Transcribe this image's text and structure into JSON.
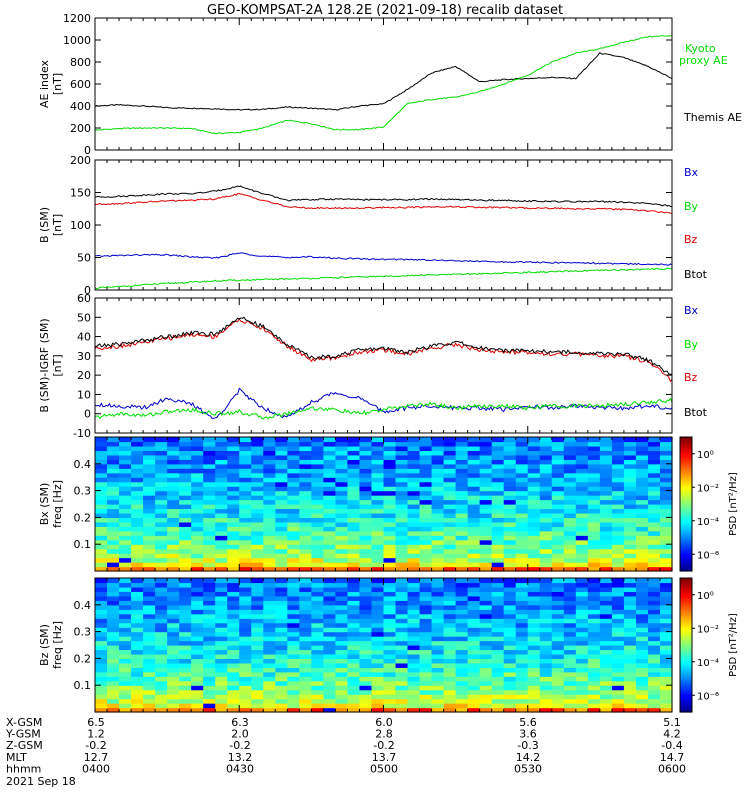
{
  "title": "GEO-KOMPSAT-2A 128.2E (2021-09-18) recalib dataset",
  "chart_data": [
    {
      "type": "line",
      "ylabel": "AE index",
      "yunit": "[nT]",
      "ylim": [
        0,
        1200
      ],
      "yticks": [
        0,
        200,
        400,
        600,
        800,
        1000,
        1200
      ],
      "x_minutes": [
        0,
        5,
        10,
        15,
        20,
        25,
        30,
        35,
        40,
        45,
        50,
        55,
        60,
        65,
        70,
        75,
        80,
        85,
        90,
        95,
        100,
        105,
        110,
        115,
        120
      ],
      "series": [
        {
          "name": "Themis AE",
          "color": "#000000",
          "values": [
            400,
            410,
            400,
            385,
            380,
            375,
            365,
            370,
            390,
            380,
            365,
            400,
            420,
            550,
            700,
            760,
            620,
            640,
            650,
            660,
            650,
            880,
            840,
            760,
            650
          ]
        },
        {
          "name": "Kyoto proxy AE",
          "color": "#00dd00",
          "values": [
            180,
            195,
            200,
            200,
            195,
            150,
            160,
            200,
            270,
            240,
            185,
            185,
            210,
            420,
            460,
            480,
            530,
            600,
            680,
            800,
            880,
            920,
            980,
            1030,
            1040
          ]
        }
      ]
    },
    {
      "type": "line",
      "ylabel": "B (SM)",
      "yunit": "[nT]",
      "ylim": [
        0,
        200
      ],
      "yticks": [
        0,
        50,
        100,
        150,
        200
      ],
      "x_minutes": [
        0,
        5,
        10,
        15,
        20,
        25,
        30,
        35,
        40,
        45,
        50,
        55,
        60,
        65,
        70,
        75,
        80,
        85,
        90,
        95,
        100,
        105,
        110,
        115,
        120
      ],
      "series": [
        {
          "name": "Bx",
          "color": "#0000cc",
          "values": [
            52,
            53,
            54,
            54,
            51,
            49,
            57,
            52,
            50,
            51,
            49,
            48,
            47,
            47,
            46,
            45,
            44,
            43,
            43,
            42,
            42,
            41,
            40,
            40,
            39
          ]
        },
        {
          "name": "By",
          "color": "#00dd00",
          "values": [
            3,
            5,
            8,
            10,
            12,
            14,
            15,
            16,
            17,
            18,
            19,
            20,
            21,
            22,
            23,
            24,
            25,
            26,
            27,
            28,
            29,
            30,
            31,
            32,
            33
          ]
        },
        {
          "name": "Bz",
          "color": "#dd0000",
          "values": [
            132,
            133,
            135,
            137,
            138,
            140,
            148,
            138,
            128,
            126,
            126,
            126,
            127,
            127,
            128,
            128,
            127,
            127,
            126,
            126,
            125,
            125,
            124,
            122,
            118
          ]
        },
        {
          "name": "Btot",
          "color": "#000000",
          "values": [
            143,
            144,
            146,
            148,
            148,
            152,
            160,
            148,
            138,
            139,
            140,
            139,
            139,
            139,
            140,
            139,
            138,
            138,
            137,
            136,
            136,
            136,
            135,
            133,
            129
          ]
        }
      ]
    },
    {
      "type": "line",
      "ylabel": "B (SM)-IGRF (SM)",
      "yunit": "[nT]",
      "ylim": [
        -10,
        60
      ],
      "yticks": [
        -10,
        0,
        10,
        20,
        30,
        40,
        50,
        60
      ],
      "x_minutes": [
        0,
        5,
        10,
        15,
        20,
        25,
        30,
        35,
        40,
        45,
        50,
        55,
        60,
        65,
        70,
        75,
        80,
        85,
        90,
        95,
        100,
        105,
        110,
        115,
        120
      ],
      "series": [
        {
          "name": "Bx",
          "color": "#0000cc",
          "values": [
            5,
            4,
            3,
            8,
            5,
            -3,
            12,
            3,
            -2,
            6,
            11,
            8,
            1,
            3,
            4,
            3,
            3,
            2,
            4,
            3,
            4,
            3,
            3,
            4,
            3
          ]
        },
        {
          "name": "By",
          "color": "#00dd00",
          "values": [
            -2,
            0,
            -1,
            1,
            2,
            0,
            1,
            -2,
            0,
            3,
            2,
            0,
            2,
            4,
            5,
            3,
            4,
            4,
            3,
            4,
            4,
            4,
            5,
            6,
            7
          ]
        },
        {
          "name": "Bz",
          "color": "#dd0000",
          "values": [
            34,
            35,
            37,
            39,
            41,
            40,
            49,
            44,
            35,
            28,
            29,
            32,
            33,
            31,
            34,
            36,
            33,
            32,
            32,
            31,
            31,
            30,
            30,
            27,
            17
          ]
        },
        {
          "name": "Btot",
          "color": "#000000",
          "values": [
            35,
            36,
            38,
            40,
            42,
            41,
            50,
            45,
            36,
            29,
            30,
            33,
            34,
            32,
            35,
            37,
            34,
            33,
            33,
            32,
            32,
            31,
            31,
            28,
            20
          ]
        }
      ]
    },
    {
      "type": "heatmap",
      "ylabel": "Bx (SM)",
      "yunit": "freq [Hz]",
      "ylim": [
        0,
        0.5
      ],
      "yticks": [
        0.1,
        0.2,
        0.3,
        0.4
      ],
      "colorbar": {
        "label": "PSD [nT²/Hz]",
        "ticks": [
          "10⁰",
          "10⁻²",
          "10⁻⁴",
          "10⁻⁶"
        ],
        "exponents": [
          0,
          -2,
          -4,
          -6
        ],
        "range_exp": [
          -7,
          1
        ]
      },
      "seed": 7
    },
    {
      "type": "heatmap",
      "ylabel": "Bz (SM)",
      "yunit": "freq [Hz]",
      "ylim": [
        0,
        0.5
      ],
      "yticks": [
        0.1,
        0.2,
        0.3,
        0.4
      ],
      "colorbar": {
        "label": "PSD [nT²/Hz]",
        "ticks": [
          "10⁰",
          "10⁻²",
          "10⁻⁴",
          "10⁻⁶"
        ],
        "exponents": [
          0,
          -2,
          -4,
          -6
        ],
        "range_exp": [
          -7,
          1
        ]
      },
      "seed": 13
    }
  ],
  "legends": [
    [
      "Kyoto",
      "proxy AE",
      "Themis AE"
    ],
    [
      "Bx",
      "By",
      "Bz",
      "Btot"
    ],
    [
      "Bx",
      "By",
      "Bz",
      "Btot"
    ]
  ],
  "ephemeris": {
    "rows": [
      {
        "label": "X-GSM",
        "values": [
          "6.5",
          "6.3",
          "6.0",
          "5.6",
          "5.1"
        ]
      },
      {
        "label": "Y-GSM",
        "values": [
          "1.2",
          "2.0",
          "2.8",
          "3.6",
          "4.2"
        ]
      },
      {
        "label": "Z-GSM",
        "values": [
          "-0.2",
          "-0.2",
          "-0.2",
          "-0.3",
          "-0.4"
        ]
      },
      {
        "label": "MLT",
        "values": [
          "12.7",
          "13.2",
          "13.7",
          "14.2",
          "14.7"
        ]
      },
      {
        "label": "hhmm",
        "values": [
          "0400",
          "0430",
          "0500",
          "0530",
          "0600"
        ]
      }
    ],
    "date": "2021 Sep 18"
  }
}
